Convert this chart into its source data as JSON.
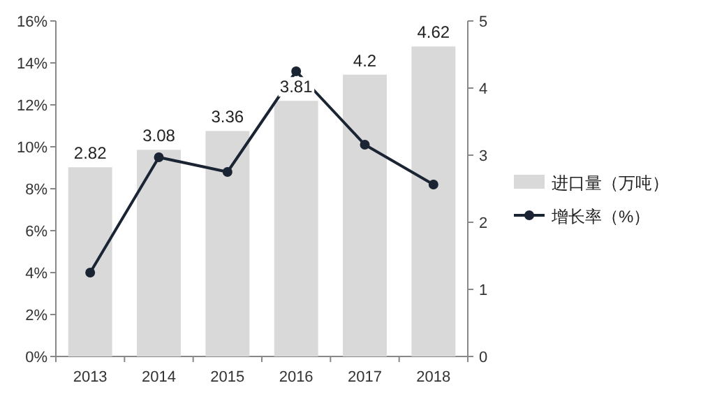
{
  "chart_data": {
    "type": "bar",
    "categories": [
      "2013",
      "2014",
      "2015",
      "2016",
      "2017",
      "2018"
    ],
    "series": [
      {
        "name": "进口量（万吨）",
        "axis": "y2",
        "color": "#d9d9d9",
        "values": [
          2.82,
          3.08,
          3.36,
          3.81,
          4.2,
          4.62
        ],
        "value_labels": [
          "2.82",
          "3.08",
          "3.36",
          "3.81",
          "4.2",
          "4.62"
        ]
      },
      {
        "name": "增长率（%）",
        "type": "line",
        "color": "#1a2433",
        "values": [
          4.0,
          9.5,
          8.8,
          13.6,
          10.1,
          8.2
        ]
      }
    ],
    "ylim": [
      0,
      16
    ],
    "yticks": [
      {
        "value": 0,
        "label": "0%"
      },
      {
        "value": 2,
        "label": "2%"
      },
      {
        "value": 4,
        "label": "4%"
      },
      {
        "value": 6,
        "label": "6%"
      },
      {
        "value": 8,
        "label": "8%"
      },
      {
        "value": 10,
        "label": "10%"
      },
      {
        "value": 12,
        "label": "12%"
      },
      {
        "value": 14,
        "label": "14%"
      },
      {
        "value": 16,
        "label": "16%"
      }
    ],
    "y2lim": [
      0,
      5
    ],
    "y2ticks": [
      0,
      1,
      2,
      3,
      4,
      5
    ],
    "legend": "right",
    "marker": "circle",
    "grid": false
  }
}
